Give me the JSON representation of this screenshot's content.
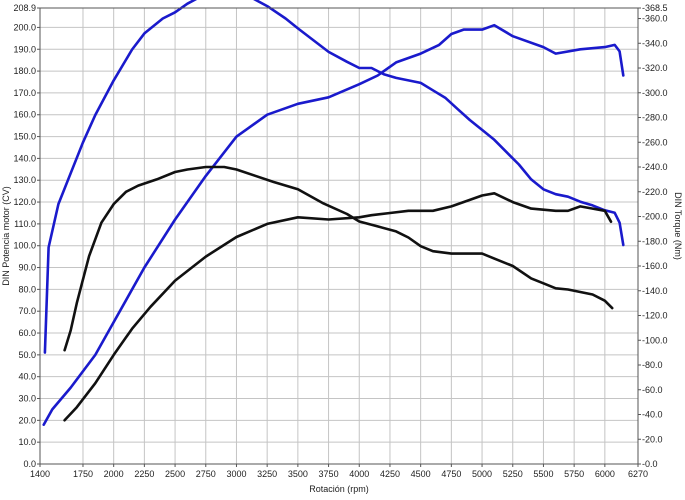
{
  "chart_data": {
    "type": "line",
    "title": "",
    "xlabel": "Rotación (rpm)",
    "ylabel_left": "DIN Potencia motor (CV)",
    "ylabel_right": "DIN Torque (Nm)",
    "xlim": [
      1400,
      6270
    ],
    "ylim_left": [
      0,
      208.9
    ],
    "ylim_right": [
      0,
      368.5
    ],
    "grid": true,
    "legend": "none",
    "x_tick_labels": [
      "1400",
      "1750",
      "2000",
      "2250",
      "2500",
      "2750",
      "3000",
      "3250",
      "3500",
      "3750",
      "4000",
      "4250",
      "4500",
      "4750",
      "5000",
      "5250",
      "5500",
      "5750",
      "6000",
      "6270"
    ],
    "left_tick_labels": [
      "0.0",
      "10.0",
      "20.0",
      "30.0",
      "40.0",
      "50.0",
      "60.0",
      "70.0",
      "80.0",
      "90.0",
      "100.0",
      "110.0",
      "120.0",
      "130.0",
      "140.0",
      "150.0",
      "160.0",
      "170.0",
      "180.0",
      "190.0",
      "200.0",
      "208.9"
    ],
    "right_tick_labels": [
      "-0.0",
      "-20.0",
      "-40.0",
      "-60.0",
      "-80.0",
      "-100.0",
      "-120.0",
      "-140.0",
      "-160.0",
      "-180.0",
      "-200.0",
      "-220.0",
      "-240.0",
      "-260.0",
      "-280.0",
      "-300.0",
      "-320.0",
      "-340.0",
      "-360.0",
      "-368.5"
    ],
    "series": [
      {
        "axis": "right",
        "color": "#1a1acc",
        "x": [
          1440,
          1470,
          1550,
          1650,
          1750,
          1850,
          2000,
          2150,
          2250,
          2400,
          2500,
          2600,
          2750,
          2900,
          3000,
          3100,
          3250,
          3400,
          3500,
          3750,
          3900,
          4000,
          4100,
          4200,
          4300,
          4400,
          4500,
          4600,
          4700,
          4800,
          4900,
          5000,
          5100,
          5200,
          5300,
          5400,
          5500,
          5600,
          5700,
          5800,
          5900,
          6000,
          6080,
          6120,
          6150
        ],
        "y": [
          90,
          175,
          210,
          235,
          260,
          282,
          310,
          335,
          348,
          360,
          365,
          372,
          380,
          385,
          382,
          378,
          370,
          360,
          352,
          333,
          325,
          320,
          320,
          315,
          312,
          310,
          308,
          302,
          296,
          287,
          278,
          270,
          262,
          252,
          242,
          230,
          222,
          218,
          216,
          212,
          209,
          205,
          203,
          195,
          177
        ]
      },
      {
        "axis": "left",
        "color": "#1a1acc",
        "x": [
          1430,
          1500,
          1650,
          1850,
          2000,
          2250,
          2500,
          2750,
          3000,
          3250,
          3500,
          3750,
          4000,
          4150,
          4300,
          4500,
          4650,
          4750,
          4850,
          5000,
          5100,
          5250,
          5500,
          5600,
          5800,
          6000,
          6080,
          6120,
          6150
        ],
        "y": [
          18,
          25,
          35,
          50,
          65,
          90,
          112,
          132,
          150,
          160,
          165,
          168,
          174,
          178,
          184,
          188,
          192,
          197,
          199,
          199,
          201,
          196,
          191,
          188,
          190,
          191,
          192,
          189,
          178
        ]
      },
      {
        "axis": "right",
        "color": "#111111",
        "x": [
          1600,
          1650,
          1700,
          1800,
          1900,
          2000,
          2100,
          2200,
          2350,
          2500,
          2600,
          2750,
          2900,
          3000,
          3150,
          3300,
          3500,
          3700,
          3900,
          4000,
          4150,
          4300,
          4400,
          4500,
          4600,
          4750,
          4900,
          5000,
          5100,
          5250,
          5400,
          5500,
          5600,
          5700,
          5800,
          5900,
          6000,
          6060
        ],
        "y": [
          92,
          108,
          130,
          168,
          195,
          210,
          220,
          225,
          230,
          236,
          238,
          240,
          240,
          238,
          233,
          228,
          222,
          211,
          202,
          196,
          192,
          188,
          183,
          176,
          172,
          170,
          170,
          170,
          166,
          160,
          150,
          146,
          142,
          141,
          139,
          137,
          132,
          126
        ]
      },
      {
        "axis": "left",
        "color": "#111111",
        "x": [
          1600,
          1700,
          1850,
          2000,
          2150,
          2300,
          2500,
          2750,
          3000,
          3250,
          3500,
          3750,
          4000,
          4100,
          4250,
          4400,
          4600,
          4750,
          4900,
          5000,
          5100,
          5250,
          5400,
          5600,
          5700,
          5800,
          5900,
          6000,
          6050
        ],
        "y": [
          20,
          26,
          37,
          50,
          62,
          72,
          84,
          95,
          104,
          110,
          113,
          112,
          113,
          114,
          115,
          116,
          116,
          118,
          121,
          123,
          124,
          120,
          117,
          116,
          116,
          118,
          117,
          116,
          111
        ]
      }
    ]
  }
}
